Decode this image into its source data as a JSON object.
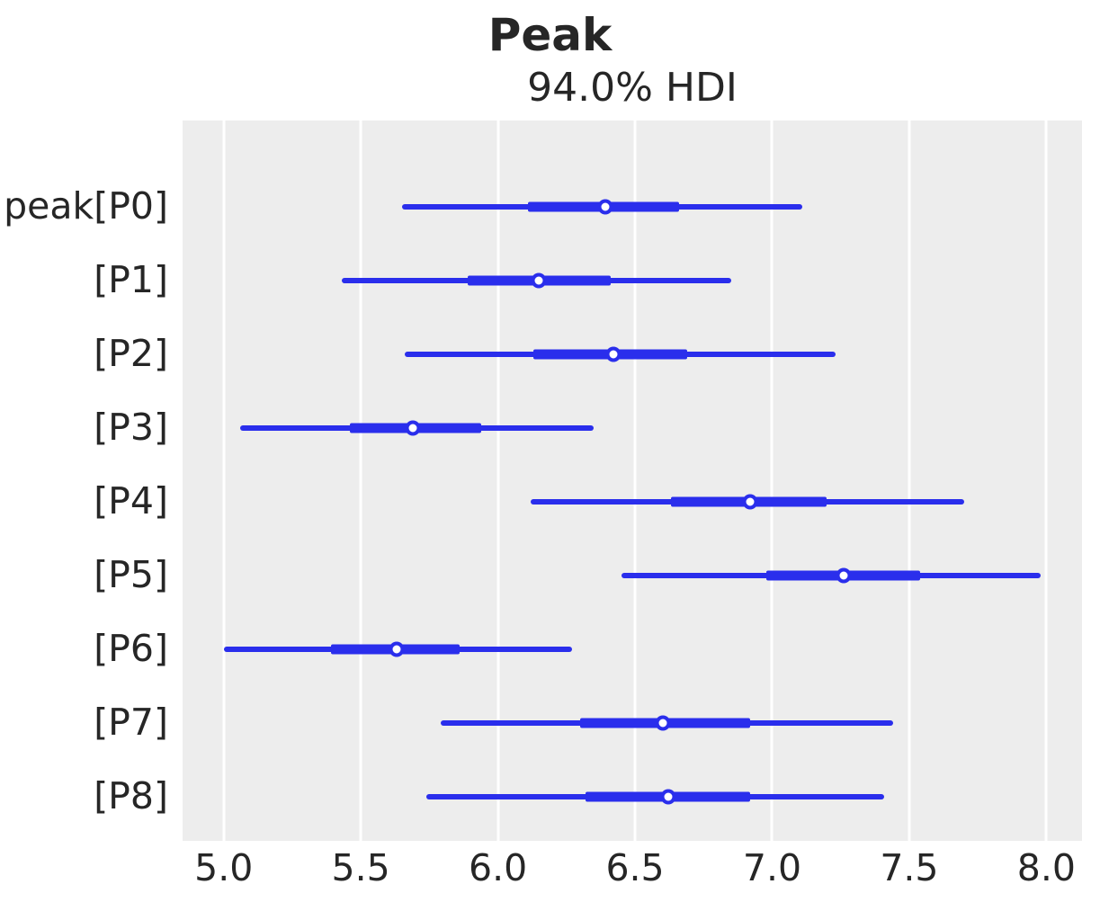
{
  "chart_data": {
    "type": "forest",
    "title": "Peak",
    "subtitle": "94.0% HDI",
    "hdi_prob": "94.0%",
    "xlabel": "",
    "ylabel": "",
    "grid": "vertical-only",
    "legend_position": "none",
    "xlim": [
      4.85,
      8.13
    ],
    "x_ticks": [
      {
        "label": "5.0",
        "value": 5.0
      },
      {
        "label": "5.5",
        "value": 5.5
      },
      {
        "label": "6.0",
        "value": 6.0
      },
      {
        "label": "6.5",
        "value": 6.5
      },
      {
        "label": "7.0",
        "value": 7.0
      },
      {
        "label": "7.5",
        "value": 7.5
      },
      {
        "label": "8.0",
        "value": 8.0
      }
    ],
    "rows": [
      {
        "label": "peak[P0]",
        "hdi": [
          5.65,
          7.11
        ],
        "quartile": [
          6.11,
          6.66
        ],
        "median": 6.39
      },
      {
        "label": "[P1]",
        "hdi": [
          5.43,
          6.85
        ],
        "quartile": [
          5.89,
          6.41
        ],
        "median": 6.15
      },
      {
        "label": "[P2]",
        "hdi": [
          5.66,
          7.23
        ],
        "quartile": [
          6.13,
          6.69
        ],
        "median": 6.42
      },
      {
        "label": "[P3]",
        "hdi": [
          5.06,
          6.35
        ],
        "quartile": [
          5.46,
          5.94
        ],
        "median": 5.69
      },
      {
        "label": "[P4]",
        "hdi": [
          6.12,
          7.7
        ],
        "quartile": [
          6.63,
          7.2
        ],
        "median": 6.92
      },
      {
        "label": "[P5]",
        "hdi": [
          6.45,
          7.98
        ],
        "quartile": [
          6.98,
          7.54
        ],
        "median": 7.26
      },
      {
        "label": "[P6]",
        "hdi": [
          5.0,
          6.27
        ],
        "quartile": [
          5.39,
          5.86
        ],
        "median": 5.63
      },
      {
        "label": "[P7]",
        "hdi": [
          5.79,
          7.44
        ],
        "quartile": [
          6.3,
          6.92
        ],
        "median": 6.6
      },
      {
        "label": "[P8]",
        "hdi": [
          5.74,
          7.41
        ],
        "quartile": [
          6.32,
          6.92
        ],
        "median": 6.62
      }
    ],
    "colors": {
      "interval": "#2a2eec",
      "marker_face": "#ffffff",
      "marker_edge": "#2a2eec",
      "plot_bg": "#ededed",
      "grid": "#ffffff",
      "text": "#262626",
      "figure_bg": "#ffffff"
    }
  }
}
